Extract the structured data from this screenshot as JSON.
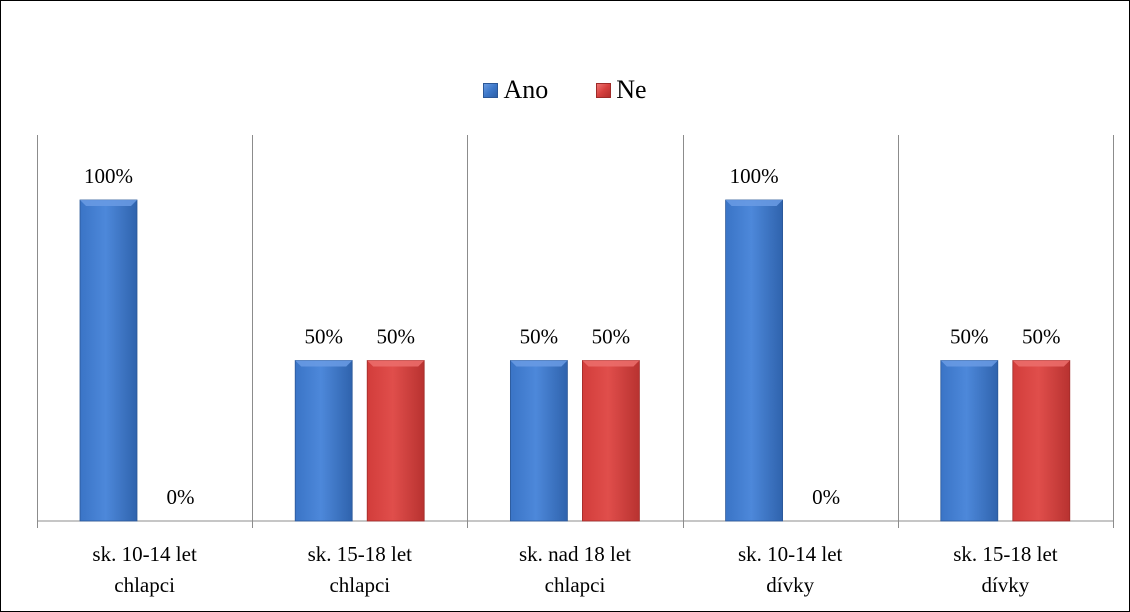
{
  "chart_data": {
    "type": "bar",
    "title": "",
    "xlabel": "",
    "ylabel": "",
    "ylim": [
      0,
      100
    ],
    "grid": false,
    "legend_position": "top-center",
    "categories": [
      [
        "sk. 10-14 let",
        "chlapci"
      ],
      [
        "sk. 15-18 let",
        "chlapci"
      ],
      [
        "sk. nad 18 let",
        "chlapci"
      ],
      [
        "sk. 10-14 let",
        "dívky"
      ],
      [
        "sk. 15-18 let",
        "dívky"
      ]
    ],
    "series": [
      {
        "name": "Ano",
        "color": "#3c77c9",
        "values": [
          100,
          50,
          50,
          100,
          50
        ]
      },
      {
        "name": "Ne",
        "color": "#d6403e",
        "values": [
          0,
          50,
          50,
          0,
          50
        ]
      }
    ],
    "data_labels": [
      [
        "100%",
        "50%",
        "50%",
        "100%",
        "50%"
      ],
      [
        "0%",
        "50%",
        "50%",
        "0%",
        "50%"
      ]
    ]
  }
}
